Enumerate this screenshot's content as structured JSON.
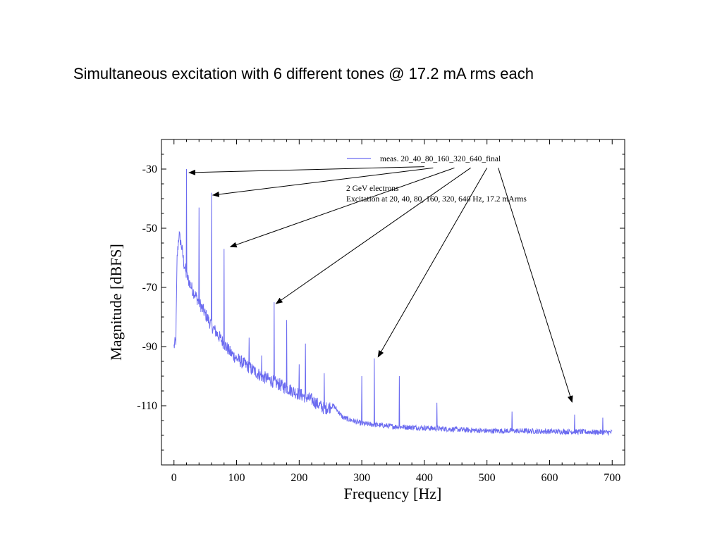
{
  "slide": {
    "title": "Simultaneous excitation with 6 different tones @ 17.2 mA rms each"
  },
  "chart_data": {
    "type": "line",
    "xlabel": "Frequency  [Hz]",
    "ylabel": "Magnitude  [dBFS]",
    "xlim": [
      -20,
      720
    ],
    "ylim": [
      -130,
      -20
    ],
    "xticks": [
      0,
      100,
      200,
      300,
      400,
      500,
      600,
      700
    ],
    "yticks": [
      -30,
      -50,
      -70,
      -90,
      -110
    ],
    "grid": false,
    "legend": "top-right",
    "series": [
      {
        "name": "meas. 20_40_80_160_320_640_final",
        "color": "#6b6bf0",
        "noise_floor": [
          [
            0,
            -90
          ],
          [
            3,
            -88
          ],
          [
            5,
            -60
          ],
          [
            8,
            -52
          ],
          [
            12,
            -56
          ],
          [
            16,
            -62
          ],
          [
            20,
            -66
          ],
          [
            30,
            -71
          ],
          [
            40,
            -75
          ],
          [
            50,
            -79
          ],
          [
            60,
            -83
          ],
          [
            70,
            -86
          ],
          [
            80,
            -89
          ],
          [
            90,
            -92
          ],
          [
            100,
            -94
          ],
          [
            120,
            -97
          ],
          [
            140,
            -100
          ],
          [
            160,
            -102
          ],
          [
            180,
            -104
          ],
          [
            200,
            -106
          ],
          [
            220,
            -108
          ],
          [
            240,
            -111
          ],
          [
            255,
            -110
          ],
          [
            270,
            -114
          ],
          [
            300,
            -116
          ],
          [
            350,
            -117
          ],
          [
            400,
            -117.5
          ],
          [
            450,
            -118
          ],
          [
            500,
            -118.5
          ],
          [
            550,
            -118.5
          ],
          [
            600,
            -118.7
          ],
          [
            650,
            -118.8
          ],
          [
            700,
            -119
          ]
        ],
        "peaks": [
          [
            20,
            -30
          ],
          [
            40,
            -43
          ],
          [
            60,
            -38
          ],
          [
            80,
            -57
          ],
          [
            120,
            -87
          ],
          [
            140,
            -93
          ],
          [
            160,
            -75
          ],
          [
            180,
            -81
          ],
          [
            200,
            -96
          ],
          [
            210,
            -89
          ],
          [
            240,
            -99
          ],
          [
            300,
            -100
          ],
          [
            320,
            -94
          ],
          [
            360,
            -100
          ],
          [
            420,
            -109
          ],
          [
            540,
            -112
          ],
          [
            640,
            -113
          ],
          [
            685,
            -114
          ]
        ]
      }
    ],
    "annotations": {
      "note_line1": "2 GeV electrons",
      "note_line2": "Excitation at 20, 40, 80, 160, 320, 640 Hz, 17.2 mArms",
      "arrows": [
        {
          "from": [
            400,
            -29.2
          ],
          "to": [
            24,
            -31.2
          ]
        },
        {
          "from": [
            414,
            -29.6
          ],
          "to": [
            62,
            -38.8
          ]
        },
        {
          "from": [
            448,
            -29.6
          ],
          "to": [
            90,
            -56.3
          ]
        },
        {
          "from": [
            474,
            -29.6
          ],
          "to": [
            163,
            -75.5
          ]
        },
        {
          "from": [
            500,
            -29.6
          ],
          "to": [
            326,
            -93.5
          ]
        },
        {
          "from": [
            518,
            -29.6
          ],
          "to": [
            636,
            -108.8
          ]
        }
      ]
    }
  }
}
